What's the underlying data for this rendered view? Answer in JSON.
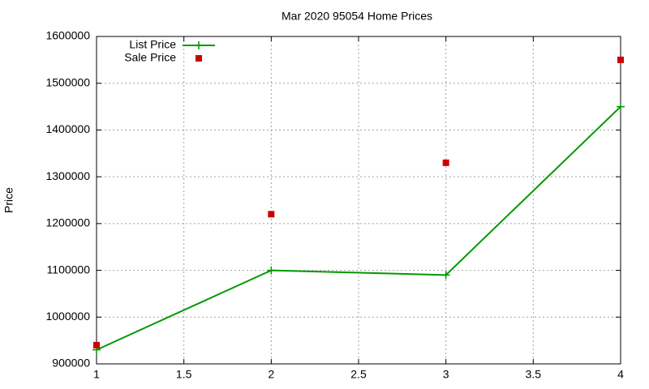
{
  "chart_data": {
    "type": "line",
    "title": "Mar 2020 95054 Home Prices",
    "y_label": "Price",
    "x": [
      1,
      2,
      3,
      4
    ],
    "series": [
      {
        "name": "List Price",
        "color": "#009900",
        "marker": "plus",
        "line": true,
        "values": [
          930000,
          1100000,
          1090000,
          1450000
        ]
      },
      {
        "name": "Sale Price",
        "color": "#cc0000",
        "marker": "square",
        "line": false,
        "values": [
          940000,
          1220000,
          1330000,
          1550000
        ]
      }
    ],
    "xlim": [
      1,
      4
    ],
    "xticks": [
      1,
      1.5,
      2,
      2.5,
      3,
      3.5,
      4
    ],
    "ylim": [
      900000,
      1600000
    ],
    "yticks": [
      900000,
      1000000,
      1100000,
      1200000,
      1300000,
      1400000,
      1500000,
      1600000
    ],
    "grid": true,
    "legend": "top-left"
  }
}
